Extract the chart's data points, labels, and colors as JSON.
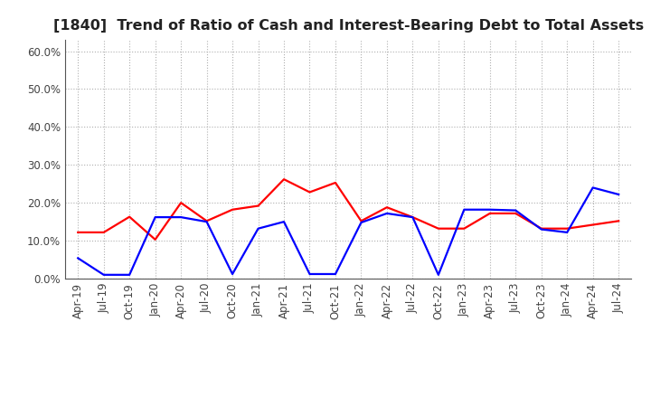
{
  "title": "[1840]  Trend of Ratio of Cash and Interest-Bearing Debt to Total Assets",
  "ylim": [
    0.0,
    0.63
  ],
  "yticks": [
    0.0,
    0.1,
    0.2,
    0.3,
    0.4,
    0.5,
    0.6
  ],
  "ytick_labels": [
    "0.0%",
    "10.0%",
    "20.0%",
    "30.0%",
    "40.0%",
    "50.0%",
    "60.0%"
  ],
  "x_labels": [
    "Apr-19",
    "Jul-19",
    "Oct-19",
    "Jan-20",
    "Apr-20",
    "Jul-20",
    "Oct-20",
    "Jan-21",
    "Apr-21",
    "Jul-21",
    "Oct-21",
    "Jan-22",
    "Apr-22",
    "Jul-22",
    "Oct-22",
    "Jan-23",
    "Apr-23",
    "Jul-23",
    "Oct-23",
    "Jan-24",
    "Apr-24",
    "Jul-24"
  ],
  "cash": [
    0.122,
    0.122,
    0.163,
    0.103,
    0.2,
    0.152,
    0.182,
    0.192,
    0.262,
    0.228,
    0.253,
    0.152,
    0.188,
    0.162,
    0.132,
    0.132,
    0.172,
    0.172,
    0.132,
    0.132,
    0.142,
    0.152
  ],
  "interest_debt": [
    0.054,
    0.01,
    0.01,
    0.162,
    0.162,
    0.15,
    0.012,
    0.132,
    0.15,
    0.012,
    0.012,
    0.148,
    0.172,
    0.162,
    0.01,
    0.182,
    0.182,
    0.18,
    0.13,
    0.122,
    0.24,
    0.222
  ],
  "cash_color": "#ff0000",
  "debt_color": "#0000ff",
  "background_color": "#ffffff",
  "grid_color": "#b0b0b0",
  "title_fontsize": 11.5,
  "tick_fontsize": 8.5,
  "legend_fontsize": 9.5,
  "line_width": 1.6
}
